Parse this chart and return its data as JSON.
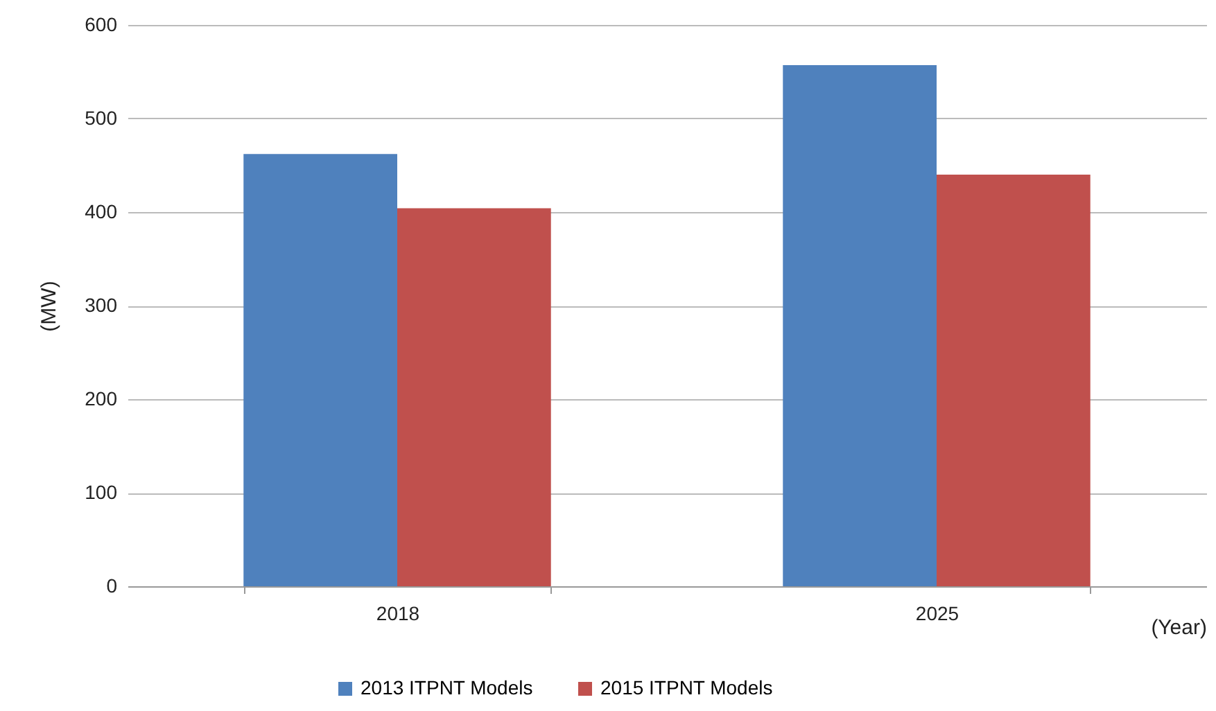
{
  "chart_data": {
    "type": "bar",
    "ylabel": "(MW)",
    "xlabel": "(Year)",
    "categories": [
      "2018",
      "2025"
    ],
    "series": [
      {
        "name": "2013 ITPNT Models",
        "color": "#4f81bd",
        "values": [
          462,
          557
        ]
      },
      {
        "name": "2015 ITPNT Models",
        "color": "#c0504d",
        "values": [
          404,
          440
        ]
      }
    ],
    "ylim": [
      0,
      600
    ],
    "yticks": [
      0,
      100,
      200,
      300,
      400,
      500,
      600
    ],
    "grid": "y",
    "legend": "bottom"
  }
}
